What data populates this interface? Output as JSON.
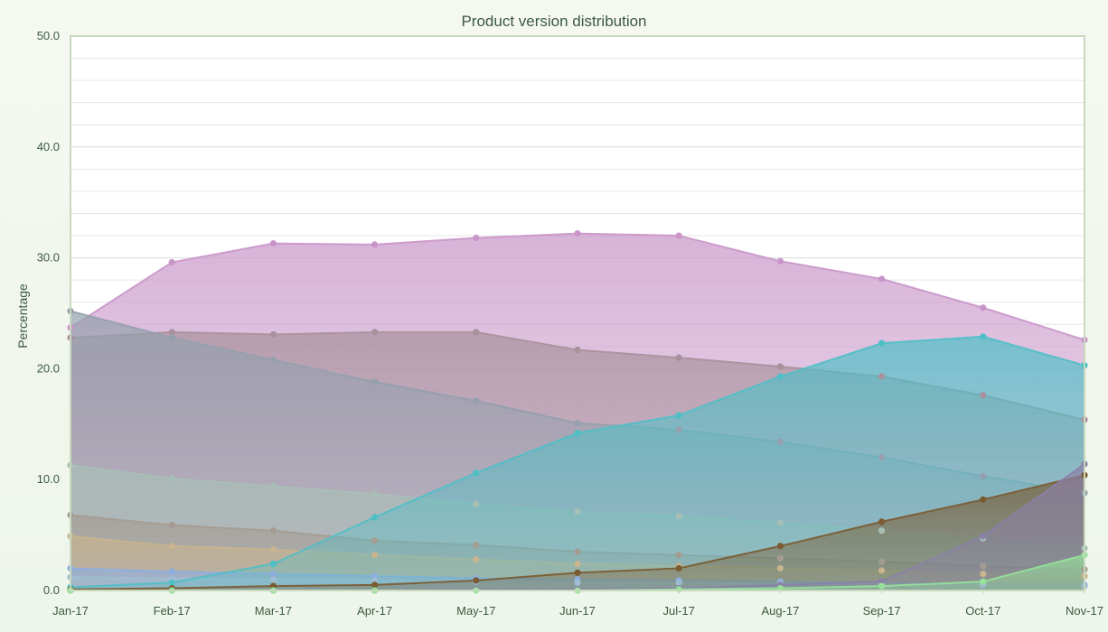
{
  "chart_data": {
    "type": "area",
    "title": "Product version distribution",
    "xlabel": "",
    "ylabel": "Percentage",
    "x": [
      "Jan-17",
      "Feb-17",
      "Mar-17",
      "Apr-17",
      "May-17",
      "Jun-17",
      "Jul-17",
      "Aug-17",
      "Sep-17",
      "Oct-17",
      "Nov-17"
    ],
    "ylim": [
      0,
      50
    ],
    "yticks": [
      "0.0",
      "10.0",
      "20.0",
      "30.0",
      "40.0",
      "50.0"
    ],
    "grid": true,
    "legend": "none",
    "series": [
      {
        "color": "#c995c9",
        "values": [
          23.7,
          29.6,
          31.3,
          31.2,
          31.8,
          32.2,
          32.0,
          29.7,
          28.1,
          25.5,
          22.6
        ]
      },
      {
        "color": "#a8919c",
        "values": [
          22.8,
          23.3,
          23.1,
          23.3,
          23.3,
          21.7,
          21.0,
          20.2,
          19.3,
          17.6,
          15.4
        ]
      },
      {
        "color": "#94a0ad",
        "values": [
          25.2,
          22.8,
          20.8,
          18.8,
          17.1,
          15.1,
          14.5,
          13.4,
          12.0,
          10.3,
          8.8
        ]
      },
      {
        "color": "#a8bfb6",
        "values": [
          11.3,
          10.1,
          9.4,
          8.7,
          7.8,
          7.1,
          6.7,
          6.1,
          5.4,
          4.7,
          3.8
        ]
      },
      {
        "color": "#a49c92",
        "values": [
          6.8,
          5.9,
          5.4,
          4.5,
          4.1,
          3.5,
          3.2,
          2.9,
          2.6,
          2.2,
          1.9
        ]
      },
      {
        "color": "#c8b48e",
        "values": [
          4.9,
          4.0,
          3.7,
          3.2,
          2.8,
          2.4,
          2.2,
          2.0,
          1.8,
          1.5,
          1.3
        ]
      },
      {
        "color": "#8eaee0",
        "values": [
          2.0,
          1.7,
          1.5,
          1.3,
          1.1,
          1.0,
          0.9,
          0.8,
          0.7,
          0.6,
          0.5
        ]
      },
      {
        "color": "#a0bcd2",
        "values": [
          1.2,
          1.1,
          1.0,
          0.9,
          0.8,
          0.7,
          0.7,
          0.6,
          0.6,
          0.5,
          0.4
        ]
      },
      {
        "color": "#4fbfc6",
        "values": [
          0.3,
          0.7,
          2.4,
          6.6,
          10.6,
          14.2,
          15.8,
          19.3,
          22.3,
          22.9,
          20.3
        ]
      },
      {
        "color": "#7a5a30",
        "values": [
          0.1,
          0.2,
          0.4,
          0.5,
          0.9,
          1.6,
          2.0,
          4.0,
          6.2,
          8.2,
          10.4
        ]
      },
      {
        "color": "#8a80a8",
        "values": [
          0.0,
          0.0,
          0.0,
          0.0,
          0.1,
          0.1,
          0.2,
          0.5,
          0.8,
          4.9,
          11.4
        ]
      },
      {
        "color": "#96e29a",
        "values": [
          0.0,
          0.0,
          0.0,
          0.0,
          0.0,
          0.0,
          0.1,
          0.2,
          0.4,
          0.8,
          3.2
        ]
      }
    ]
  }
}
